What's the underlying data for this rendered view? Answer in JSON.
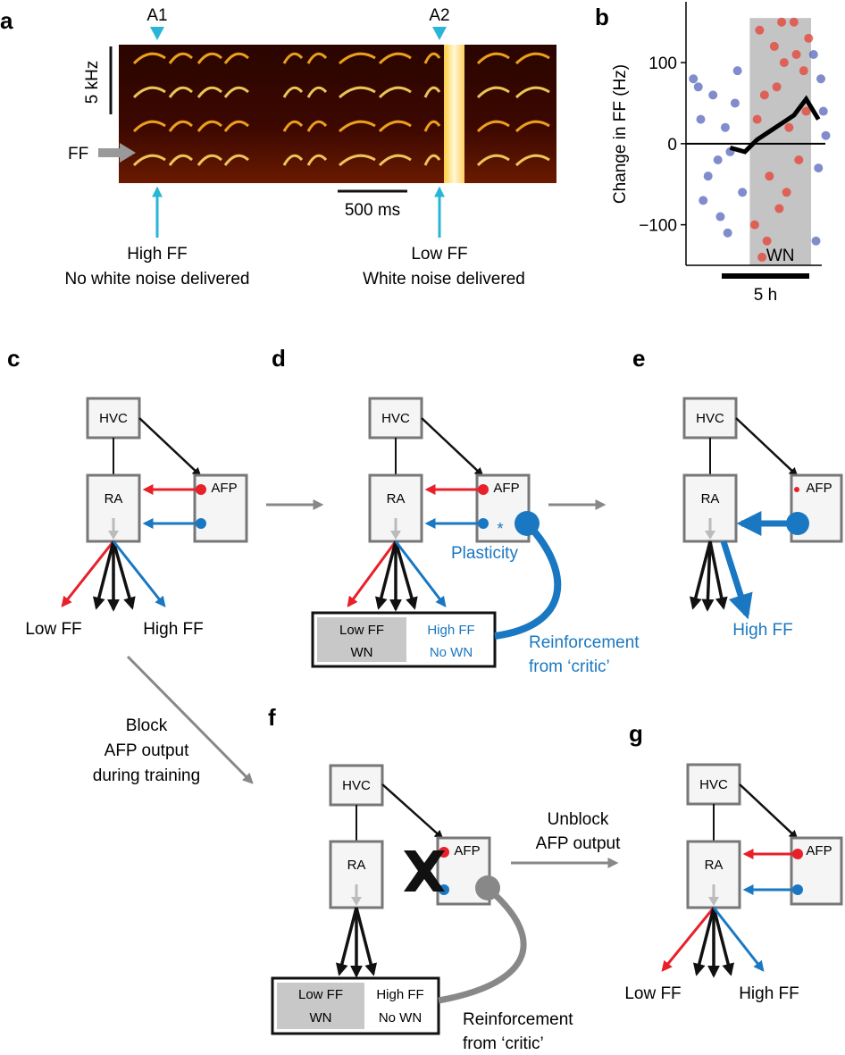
{
  "panel_labels": {
    "a": "a",
    "b": "b",
    "c": "c",
    "d": "d",
    "e": "e",
    "f": "f",
    "g": "g"
  },
  "spectrogram": {
    "marker_a1": "A1",
    "marker_a2": "A2",
    "freq_scale": "5 kHz",
    "ff_label": "FF",
    "time_scale": "500 ms",
    "left_caption_line1": "High FF",
    "left_caption_line2": "No white noise delivered",
    "right_caption_line1": "Low FF",
    "right_caption_line2": "White noise delivered"
  },
  "chart_data": {
    "type": "scatter",
    "ylabel": "Change in FF (Hz)",
    "yticks": [
      "100",
      "0",
      "−100"
    ],
    "ylim": [
      -150,
      175
    ],
    "xlim": [
      -2.6,
      3.3
    ],
    "shade_label": "WN",
    "time_scale_label": "5 h",
    "shaded_interval": [
      0,
      2.5
    ],
    "series": [
      {
        "color": "#4a5bb5",
        "x": [
          -2.3,
          -2.0,
          -1.7,
          -1.5,
          -1.2,
          -1.0,
          -0.8,
          -0.5,
          -0.3,
          2.6,
          2.8,
          3.0,
          -2.1,
          -1.3,
          -0.6,
          2.7,
          2.9,
          -1.9,
          -0.9,
          3.1
        ],
        "y": [
          80,
          30,
          -40,
          60,
          -90,
          20,
          -10,
          90,
          -60,
          110,
          -30,
          40,
          70,
          -20,
          50,
          -120,
          80,
          -70,
          -110,
          10
        ]
      },
      {
        "color": "#e8382a",
        "x": [
          0.2,
          0.4,
          0.6,
          0.8,
          1.0,
          1.2,
          1.4,
          1.6,
          1.8,
          2.0,
          2.2,
          2.4,
          0.3,
          0.7,
          1.1,
          1.5,
          1.9,
          2.3,
          0.5,
          1.3
        ],
        "y": [
          -100,
          140,
          60,
          -40,
          120,
          -80,
          100,
          20,
          150,
          -20,
          90,
          130,
          30,
          -120,
          70,
          -60,
          110,
          40,
          -140,
          150
        ]
      },
      {
        "color": "#000000",
        "x": [
          -0.8,
          -0.2,
          0.3,
          0.8,
          1.3,
          1.8,
          2.3,
          2.8
        ],
        "y": [
          -5,
          -10,
          5,
          15,
          25,
          35,
          55,
          30
        ]
      }
    ]
  },
  "circuit": {
    "hvc": "HVC",
    "ra": "RA",
    "afp": "AFP",
    "low_ff": "Low FF",
    "high_ff": "High FF",
    "plasticity": "Plasticity",
    "asterisk": "*",
    "reinforcement_line1": "Reinforcement",
    "reinforcement_line2": "from ‘critic’",
    "outcome_low_ff": "Low FF",
    "outcome_wn": "WN",
    "outcome_high_ff": "High FF",
    "outcome_no_wn": "No WN",
    "block_line1": "Block",
    "block_line2": "AFP output",
    "block_line3": "during training",
    "unblock_line1": "Unblock",
    "unblock_line2": "AFP  output"
  },
  "colors": {
    "red": "#e8202a",
    "blue": "#1a78c2",
    "gray": "#888888",
    "cyan": "#29b6d6"
  }
}
